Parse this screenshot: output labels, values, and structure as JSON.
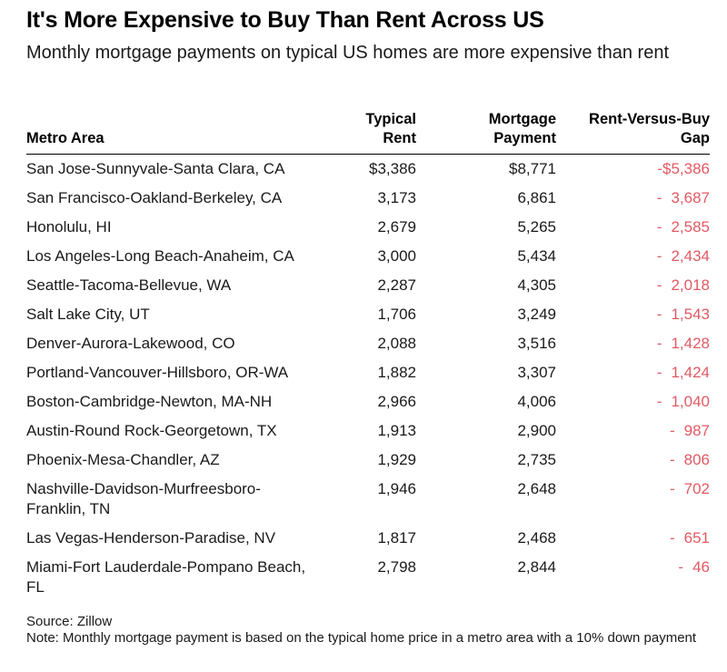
{
  "title": "It's More Expensive to Buy Than Rent Across US",
  "subtitle": "Monthly mortgage payments on typical US homes are more expensive than rent",
  "table": {
    "headers": {
      "metro": "Metro Area",
      "rent_line1": "Typical",
      "rent_line2": "Rent",
      "mortgage_line1": "Mortgage",
      "mortgage_line2": "Payment",
      "gap_line1": "Rent-Versus-Buy",
      "gap_line2": "Gap"
    },
    "gap_color": "#e05a63"
  },
  "chart_data": {
    "type": "table",
    "title": "It's More Expensive to Buy Than Rent Across US",
    "subtitle": "Monthly mortgage payments on typical US homes are more expensive than rent",
    "columns": [
      "Metro Area",
      "Typical Rent",
      "Mortgage Payment",
      "Rent-Versus-Buy Gap"
    ],
    "rows": [
      {
        "metro": "San Jose-Sunnyvale-Santa Clara, CA",
        "rent": "$3,386",
        "mortgage": "$8,771",
        "gap_sign": "-",
        "gap": "$5,386",
        "tight": true
      },
      {
        "metro": "San Francisco-Oakland-Berkeley, CA",
        "rent": "3,173",
        "mortgage": "6,861",
        "gap_sign": "-",
        "gap": "3,687"
      },
      {
        "metro": "Honolulu, HI",
        "rent": "2,679",
        "mortgage": "5,265",
        "gap_sign": "-",
        "gap": "2,585"
      },
      {
        "metro": "Los Angeles-Long Beach-Anaheim, CA",
        "rent": "3,000",
        "mortgage": "5,434",
        "gap_sign": "-",
        "gap": "2,434"
      },
      {
        "metro": "Seattle-Tacoma-Bellevue, WA",
        "rent": "2,287",
        "mortgage": "4,305",
        "gap_sign": "-",
        "gap": "2,018"
      },
      {
        "metro": "Salt Lake City, UT",
        "rent": "1,706",
        "mortgage": "3,249",
        "gap_sign": "-",
        "gap": "1,543"
      },
      {
        "metro": "Denver-Aurora-Lakewood, CO",
        "rent": "2,088",
        "mortgage": "3,516",
        "gap_sign": "-",
        "gap": "1,428"
      },
      {
        "metro": "Portland-Vancouver-Hillsboro, OR-WA",
        "rent": "1,882",
        "mortgage": "3,307",
        "gap_sign": "-",
        "gap": "1,424"
      },
      {
        "metro": "Boston-Cambridge-Newton, MA-NH",
        "rent": "2,966",
        "mortgage": "4,006",
        "gap_sign": "-",
        "gap": "1,040"
      },
      {
        "metro": "Austin-Round Rock-Georgetown, TX",
        "rent": "1,913",
        "mortgage": "2,900",
        "gap_sign": "-",
        "gap": "987"
      },
      {
        "metro": "Phoenix-Mesa-Chandler, AZ",
        "rent": "1,929",
        "mortgage": "2,735",
        "gap_sign": "-",
        "gap": "806"
      },
      {
        "metro": "Nashville-Davidson-Murfreesboro-Franklin, TN",
        "rent": "1,946",
        "mortgage": "2,648",
        "gap_sign": "-",
        "gap": "702"
      },
      {
        "metro": "Las Vegas-Henderson-Paradise, NV",
        "rent": "1,817",
        "mortgage": "2,468",
        "gap_sign": "-",
        "gap": "651"
      },
      {
        "metro": "Miami-Fort Lauderdale-Pompano Beach, FL",
        "rent": "2,798",
        "mortgage": "2,844",
        "gap_sign": "-",
        "gap": "46"
      }
    ]
  },
  "footer": {
    "source": "Source: Zillow",
    "note": "Note: Monthly mortgage payment is based on the typical home price in a metro area with a 10% down payment"
  }
}
